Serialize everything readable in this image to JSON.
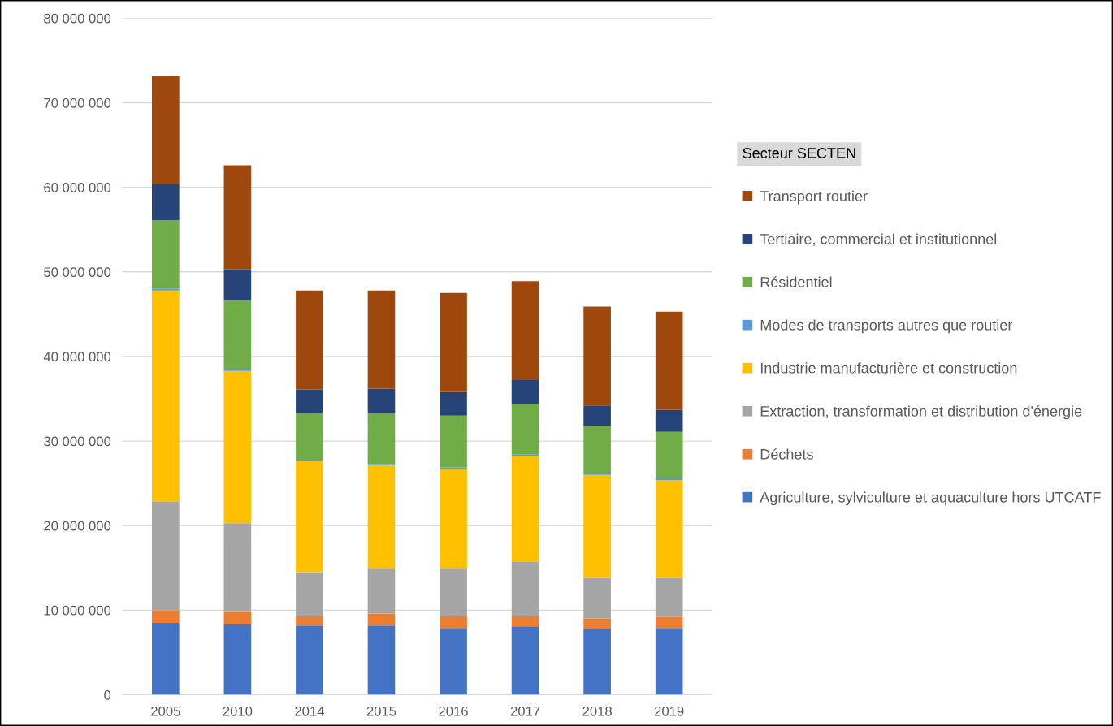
{
  "chart_data": {
    "type": "bar",
    "stacked": true,
    "legend_title": "Secteur SECTEN",
    "legend": "right",
    "grid": "y",
    "categories": [
      "2005",
      "2010",
      "2014",
      "2015",
      "2016",
      "2017",
      "2018",
      "2019"
    ],
    "ylim": [
      0,
      80000000
    ],
    "yticks": [
      {
        "value": 0,
        "label": "0"
      },
      {
        "value": 10000000,
        "label": "10 000 000"
      },
      {
        "value": 20000000,
        "label": "20 000 000"
      },
      {
        "value": 30000000,
        "label": "30 000 000"
      },
      {
        "value": 40000000,
        "label": "40 000 000"
      },
      {
        "value": 50000000,
        "label": "50 000 000"
      },
      {
        "value": 60000000,
        "label": "60 000 000"
      },
      {
        "value": 70000000,
        "label": "70 000 000"
      },
      {
        "value": 80000000,
        "label": "80 000 000"
      }
    ],
    "series": [
      {
        "name": "Agriculture, sylviculture et aquaculture hors UTCATF",
        "color": "#4472c4",
        "values": [
          8500000,
          8300000,
          8200000,
          8200000,
          7900000,
          8100000,
          7800000,
          7900000
        ]
      },
      {
        "name": "Déchets",
        "color": "#ed7d31",
        "values": [
          1500000,
          1500000,
          1100000,
          1400000,
          1400000,
          1200000,
          1200000,
          1300000
        ]
      },
      {
        "name": "Extraction, transformation et distribution d'énergie",
        "color": "#a5a5a5",
        "values": [
          12800000,
          10500000,
          5200000,
          5300000,
          5600000,
          6400000,
          4800000,
          4600000
        ]
      },
      {
        "name": "Industrie manufacturière et construction",
        "color": "#ffc000",
        "values": [
          25000000,
          18000000,
          13100000,
          12200000,
          11800000,
          12500000,
          12200000,
          11600000
        ]
      },
      {
        "name": "Modes de transports autres que routier",
        "color": "#5b9bd5",
        "values": [
          200000,
          200000,
          200000,
          200000,
          200000,
          200000,
          200000,
          200000
        ]
      },
      {
        "name": "Résidentiel",
        "color": "#70ad47",
        "values": [
          8100000,
          8100000,
          5500000,
          6000000,
          6100000,
          6000000,
          5600000,
          5500000
        ]
      },
      {
        "name": "Tertiaire, commercial et institutionnel",
        "color": "#264478",
        "values": [
          4300000,
          3700000,
          2800000,
          2900000,
          2800000,
          2800000,
          2400000,
          2600000
        ]
      },
      {
        "name": "Transport routier",
        "color": "#9e480e",
        "values": [
          12800000,
          12300000,
          11700000,
          11600000,
          11700000,
          11700000,
          11700000,
          11600000
        ]
      }
    ]
  }
}
